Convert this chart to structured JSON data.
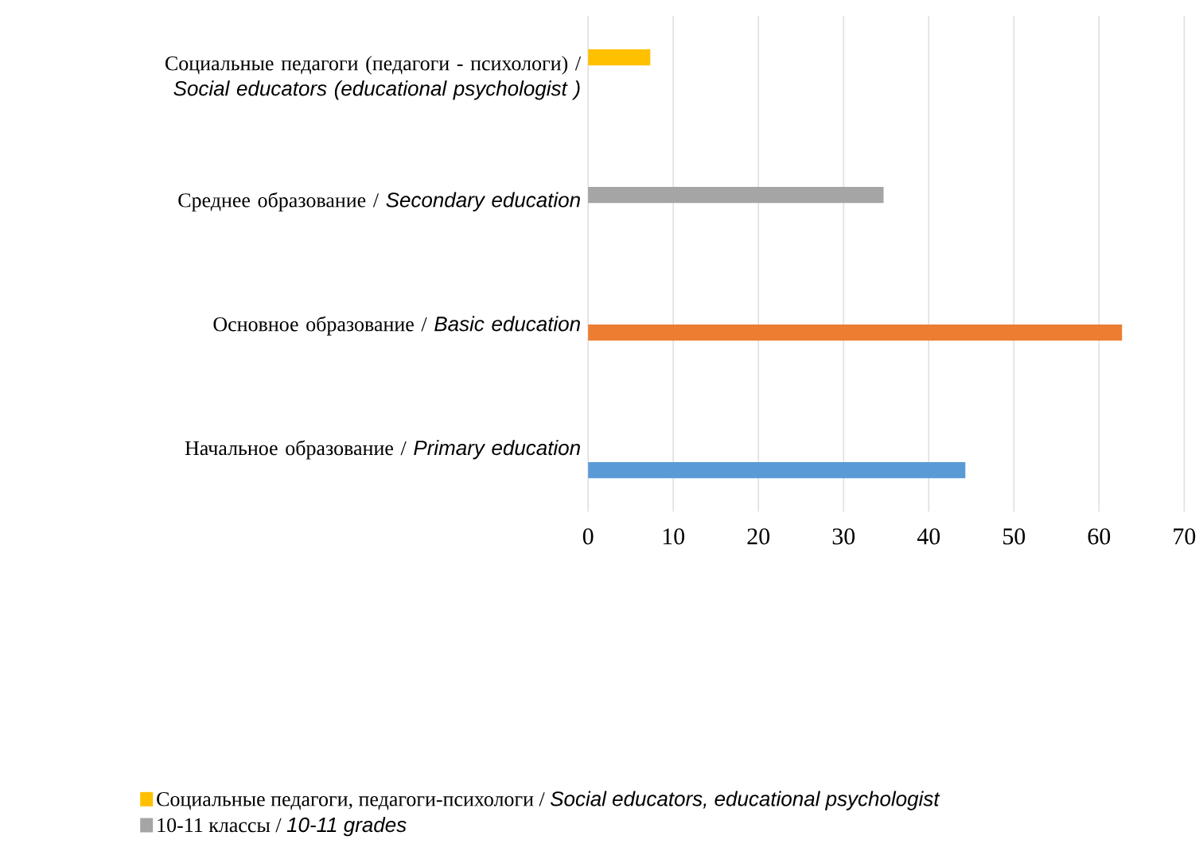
{
  "chart_data": {
    "type": "bar",
    "orientation": "horizontal",
    "categories": [
      "Социальные педагоги (педагоги - психологи) / *Social educators (educational psychologist )*",
      "Среднее образование / *Secondary education*",
      "Основное образование / *Basic education*",
      "Начальное образование / *Primary education*"
    ],
    "series": [
      {
        "name": "Социальные педагоги, педагоги-психологи / *Social educators, educational psychologist*",
        "color": "#ffc000",
        "values": [
          7.3,
          null,
          null,
          null
        ]
      },
      {
        "name": "10-11 классы / *10-11 grades*",
        "color": "#a5a5a5",
        "values": [
          null,
          34.7,
          null,
          null
        ]
      },
      {
        "color": "#ed7d31",
        "values": [
          null,
          null,
          62.7,
          null
        ]
      },
      {
        "color": "#5b9bd5",
        "values": [
          null,
          null,
          null,
          44.3
        ]
      }
    ],
    "xlim": [
      0,
      70
    ],
    "xticks": [
      0,
      10,
      20,
      30,
      40,
      50,
      60,
      70
    ],
    "grid": "x",
    "legend": "bottom"
  }
}
